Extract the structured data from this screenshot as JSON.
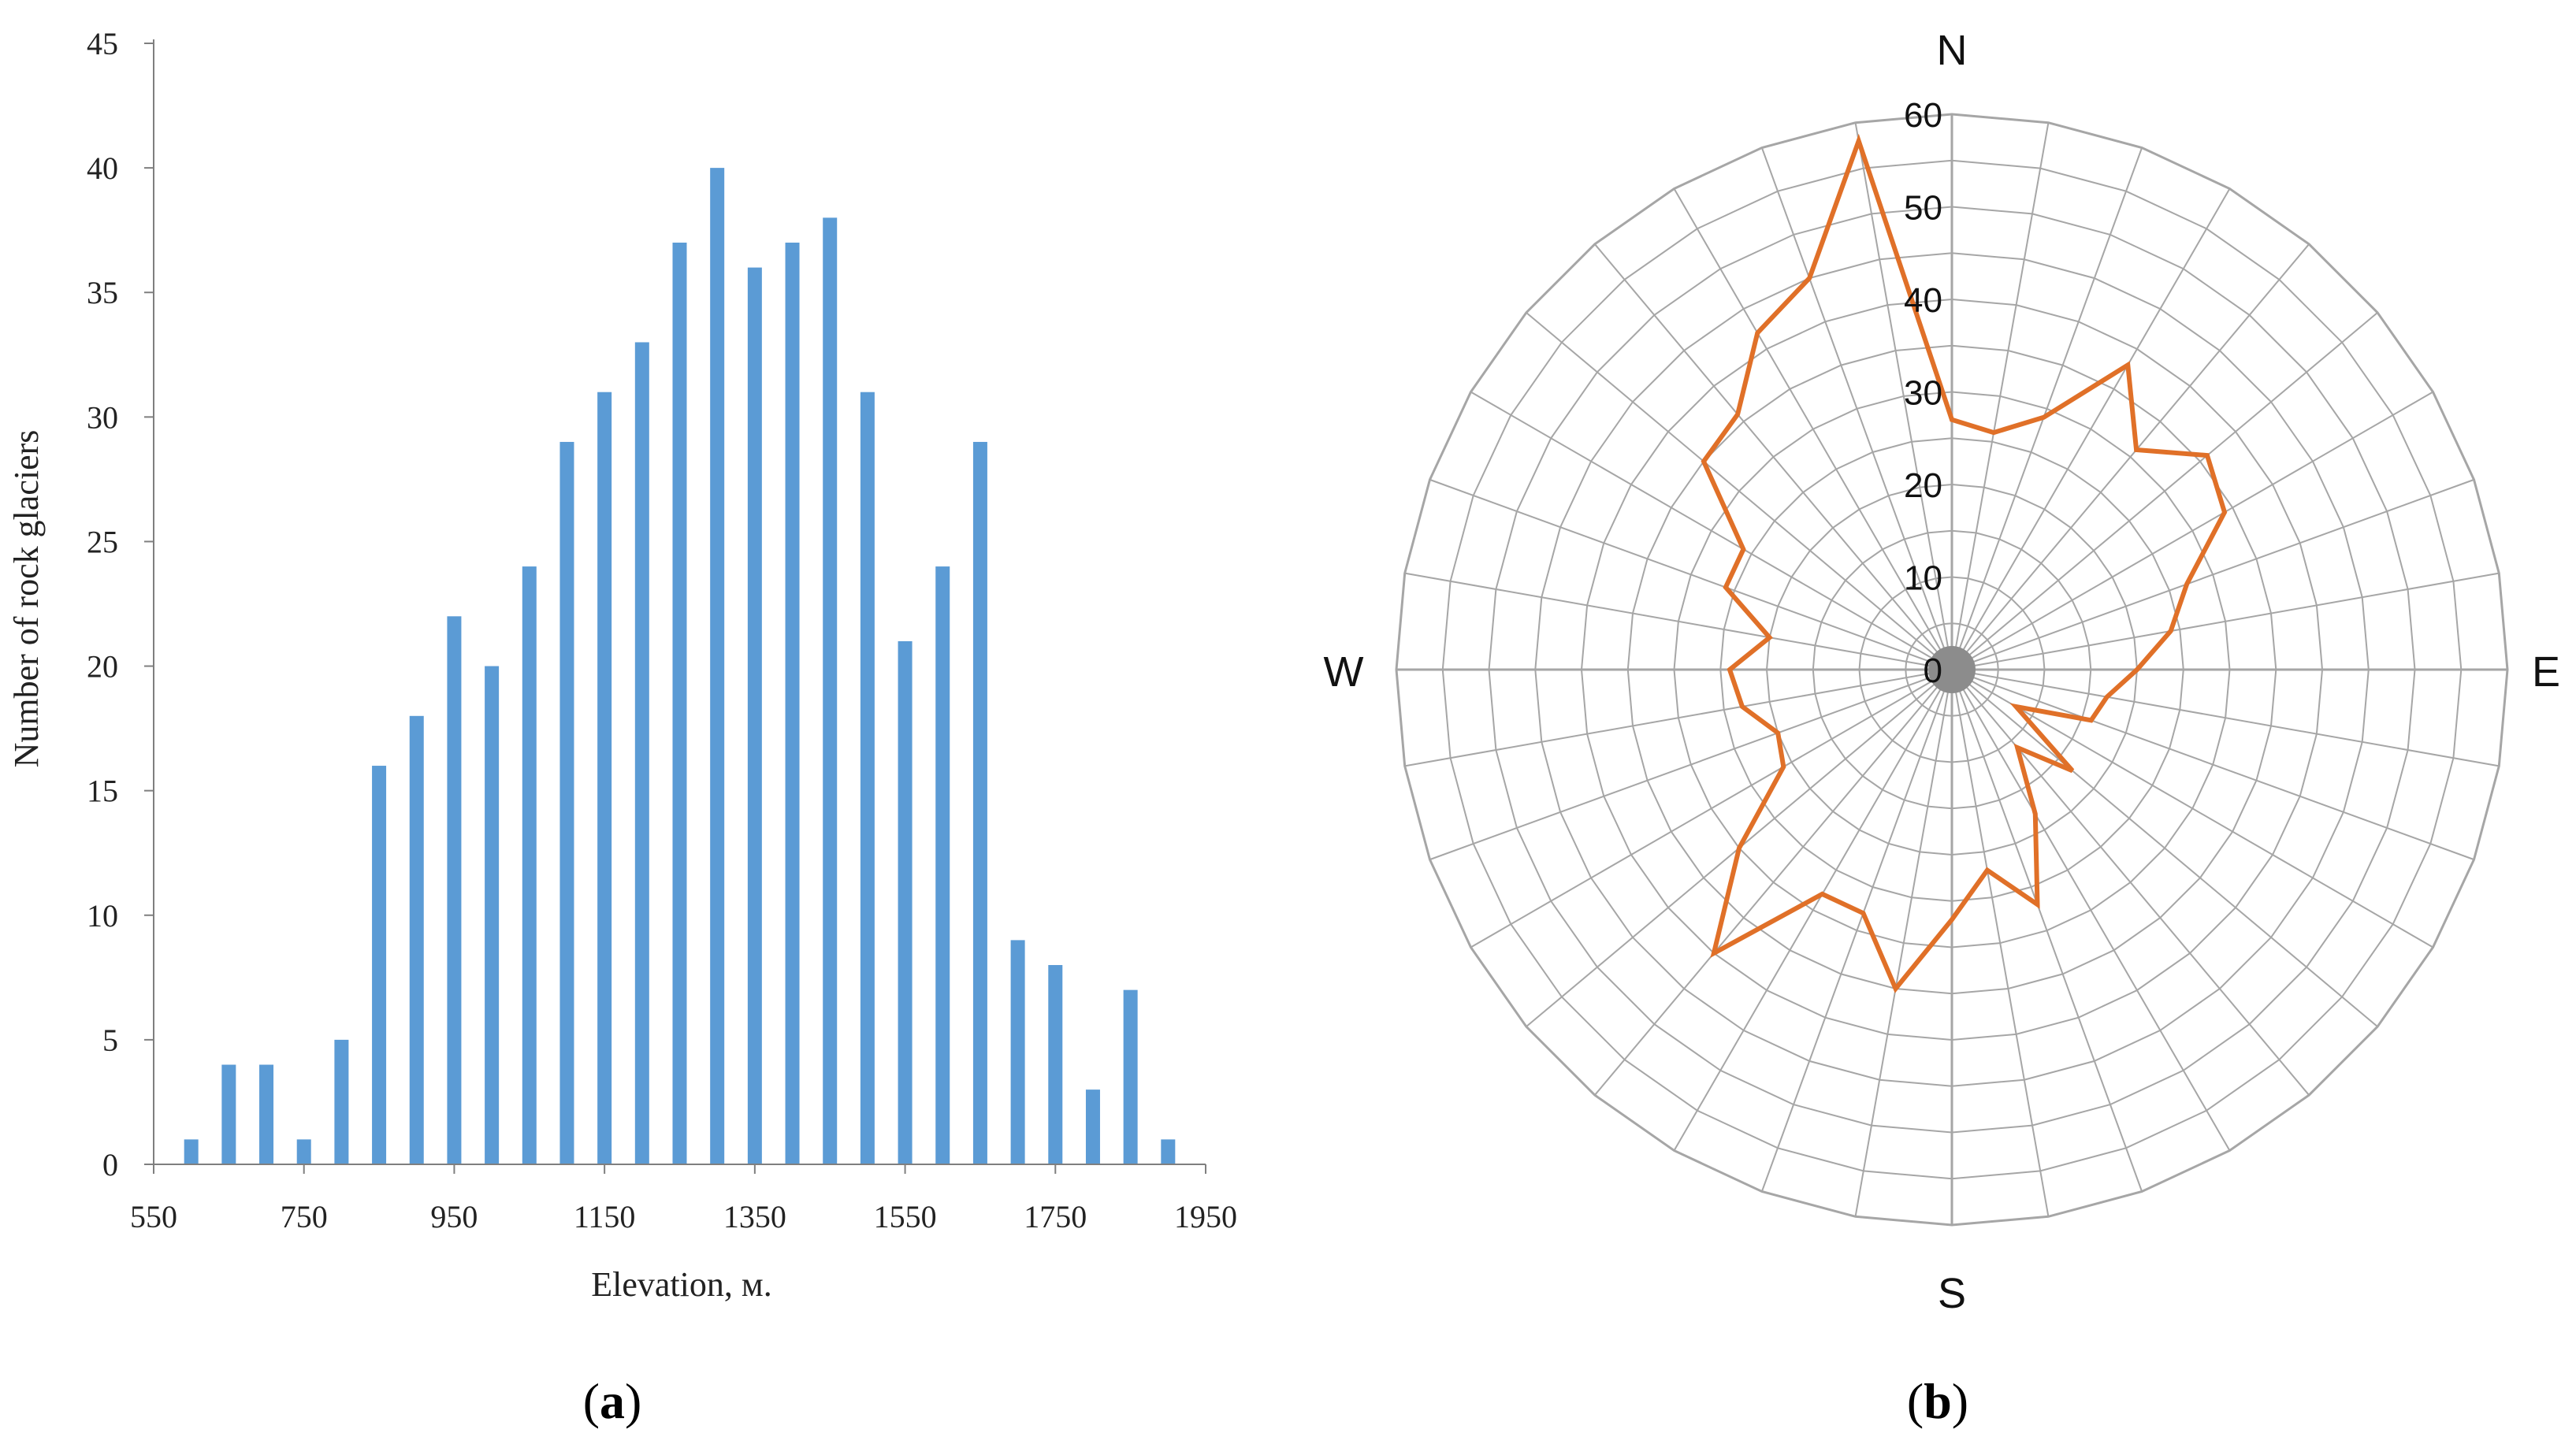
{
  "colors": {
    "bar": "#5b9bd5",
    "radar_line": "#e07028",
    "grid": "#a6a6a6",
    "axis": "#7f7f7f",
    "center_dot": "#8c8c8c"
  },
  "chart_data": [
    {
      "panel": "a",
      "type": "bar",
      "title": "",
      "xlabel": "Elevation, м.",
      "ylabel": "Number of rock glaciers",
      "xlim": [
        550,
        1950
      ],
      "ylim": [
        0,
        45
      ],
      "x_ticks": [
        "550",
        "750",
        "950",
        "1150",
        "1350",
        "1550",
        "1750",
        "1950"
      ],
      "y_ticks": [
        "0",
        "5",
        "10",
        "15",
        "20",
        "25",
        "30",
        "35",
        "40",
        "45"
      ],
      "categories": [
        600,
        650,
        700,
        750,
        800,
        850,
        900,
        950,
        1000,
        1050,
        1100,
        1150,
        1200,
        1250,
        1300,
        1350,
        1400,
        1450,
        1500,
        1550,
        1600,
        1650,
        1700,
        1750,
        1800,
        1850,
        1900
      ],
      "values": [
        1,
        4,
        4,
        1,
        5,
        16,
        18,
        22,
        20,
        24,
        29,
        31,
        33,
        37,
        40,
        36,
        37,
        38,
        31,
        21,
        24,
        29,
        9,
        8,
        3,
        7,
        1
      ]
    },
    {
      "panel": "b",
      "type": "radar",
      "title": "",
      "directions": {
        "n": "N",
        "e": "E",
        "s": "S",
        "w": "W"
      },
      "rlim": [
        0,
        60
      ],
      "r_ticks": [
        "0",
        "10",
        "20",
        "30",
        "40",
        "50",
        "60"
      ],
      "angle_step_deg": 10,
      "values": [
        27,
        26,
        29,
        38,
        31,
        36,
        34,
        27,
        24,
        20,
        17,
        16,
        8,
        17,
        11,
        18,
        27,
        22,
        27,
        35,
        28,
        28,
        40,
        30,
        21,
        20,
        23,
        24,
        20,
        26,
        26,
        35,
        36,
        42,
        45,
        58
      ]
    }
  ],
  "panel_labels": {
    "a": "a",
    "b": "b"
  }
}
